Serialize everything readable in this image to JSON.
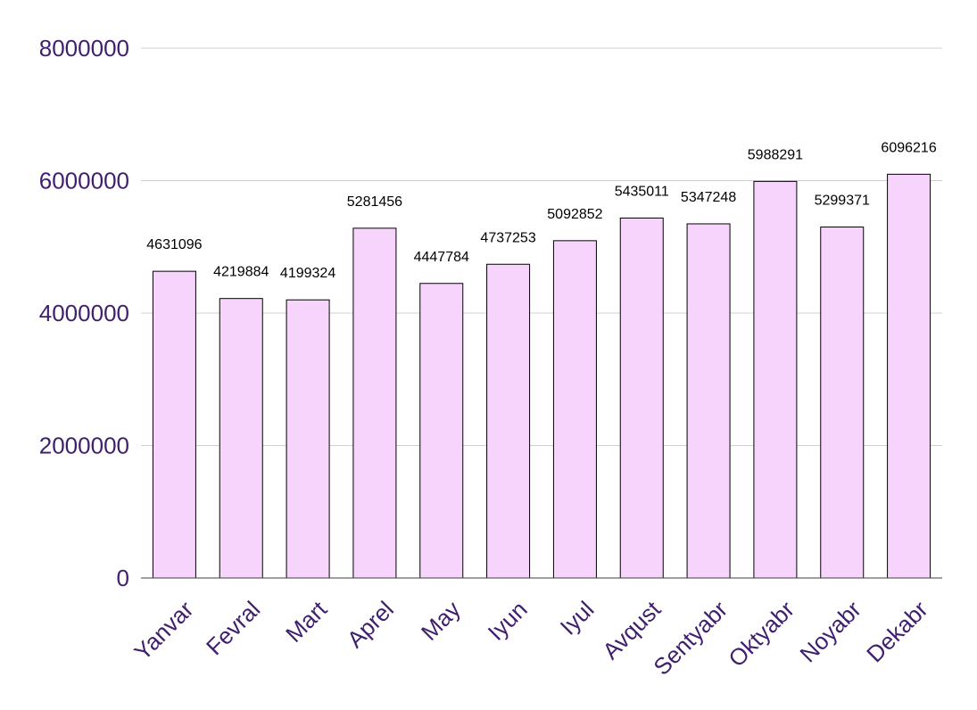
{
  "chart_data": {
    "type": "bar",
    "title": "",
    "xlabel": "",
    "ylabel": "",
    "categories": [
      "Yanvar",
      "Fevral",
      "Mart",
      "Aprel",
      "May",
      "Iyun",
      "Iyul",
      "Avqust",
      "Sentyabr",
      "Oktyabr",
      "Noyabr",
      "Dekabr"
    ],
    "values": [
      4631096,
      4219884,
      4199324,
      5281456,
      4447784,
      4737253,
      5092852,
      5435011,
      5347248,
      5988291,
      5299371,
      6096216
    ],
    "data_labels": [
      "4631096",
      "4219884",
      "4199324",
      "5281456",
      "4447784",
      "4737253",
      "5092852",
      "5435011",
      "5347248",
      "5988291",
      "5299371",
      "6096216"
    ],
    "ylim": [
      0,
      8000000
    ],
    "yticks": [
      0,
      2000000,
      4000000,
      6000000,
      8000000
    ],
    "ytick_labels": [
      "0",
      "2000000",
      "4000000",
      "6000000",
      "8000000"
    ],
    "grid": true,
    "legend": "none",
    "colors": {
      "bar_fill": "#f7d4fc",
      "bar_stroke": "#000000",
      "tick_label": "#3f1f6e",
      "gridline": "#d0d0d0"
    }
  }
}
